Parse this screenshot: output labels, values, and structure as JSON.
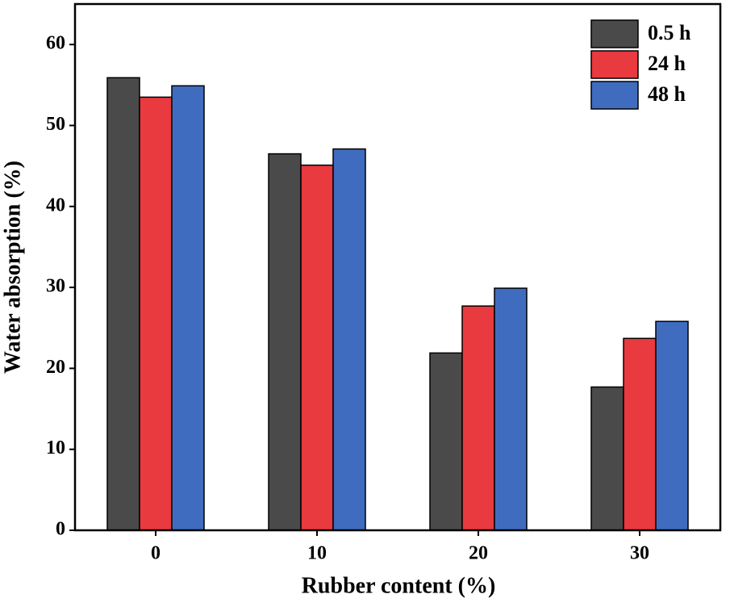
{
  "chart_data": {
    "type": "bar",
    "x_label": "Rubber content (%)",
    "y_label": "Water absorption (%)",
    "categories": [
      "0",
      "10",
      "20",
      "30"
    ],
    "series": [
      {
        "name": "0.5 h",
        "color": "#4a4a4a",
        "values": [
          55.9,
          46.5,
          21.9,
          17.7
        ]
      },
      {
        "name": "24 h",
        "color": "#e83a3f",
        "values": [
          53.5,
          45.1,
          27.7,
          23.7
        ]
      },
      {
        "name": "48 h",
        "color": "#3f6cbf",
        "values": [
          54.9,
          47.1,
          29.9,
          25.8
        ]
      }
    ],
    "ylim": [
      0,
      65
    ],
    "yticks": [
      0,
      10,
      20,
      30,
      40,
      50,
      60
    ],
    "legend": "upper right",
    "grid": false
  }
}
